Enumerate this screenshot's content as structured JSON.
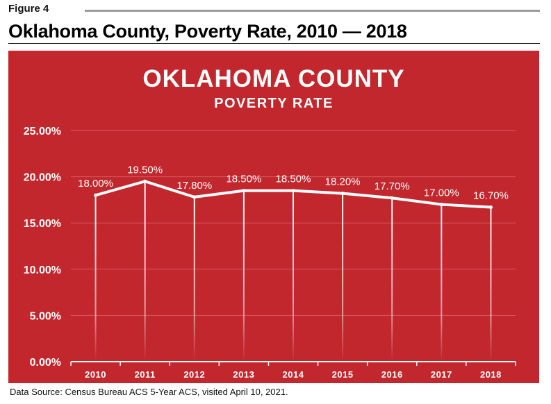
{
  "figure_label": "Figure 4",
  "figure_title": "Oklahoma County, Poverty Rate, 2010 — 2018",
  "source_note": "Data Source: Census Bureau ACS 5-Year ACS, visited April 10, 2021.",
  "colors": {
    "panel": "#c1272d",
    "text": "#ffffff",
    "gridline": "#d9585d"
  },
  "chart_data": {
    "type": "line",
    "title": "OKLAHOMA COUNTY",
    "subtitle": "POVERTY RATE",
    "categories": [
      "2010",
      "2011",
      "2012",
      "2013",
      "2014",
      "2015",
      "2016",
      "2017",
      "2018"
    ],
    "values": [
      18.0,
      19.5,
      17.8,
      18.5,
      18.5,
      18.2,
      17.7,
      17.0,
      16.7
    ],
    "data_labels": [
      "18.00%",
      "19.50%",
      "17.80%",
      "18.50%",
      "18.50%",
      "18.20%",
      "17.70%",
      "17.00%",
      "16.70%"
    ],
    "y_ticks": [
      0,
      5,
      10,
      15,
      20,
      25
    ],
    "y_tick_labels": [
      "0.00%",
      "5.00%",
      "10.00%",
      "15.00%",
      "20.00%",
      "25.00%"
    ],
    "ylim": [
      0,
      25
    ],
    "grid": true,
    "xlabel": "",
    "ylabel": ""
  }
}
